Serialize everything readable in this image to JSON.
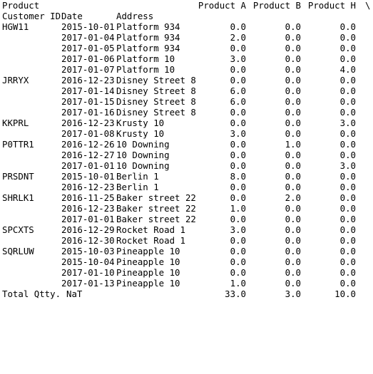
{
  "header": {
    "col0": "Product",
    "product_a": "Product A",
    "product_b": "Product B",
    "product_h": "Product H",
    "continuation": "\\",
    "customer_id": "Customer ID",
    "date": "Date",
    "address": "Address"
  },
  "rows": [
    {
      "id": "HGW11",
      "date": "2015-10-01",
      "address": "Platform 934",
      "a": "0.0",
      "b": "0.0",
      "h": "0.0"
    },
    {
      "id": "",
      "date": "2017-01-04",
      "address": "Platform 934",
      "a": "2.0",
      "b": "0.0",
      "h": "0.0"
    },
    {
      "id": "",
      "date": "2017-01-05",
      "address": "Platform 934",
      "a": "0.0",
      "b": "0.0",
      "h": "0.0"
    },
    {
      "id": "",
      "date": "2017-01-06",
      "address": "Platform 10",
      "a": "3.0",
      "b": "0.0",
      "h": "0.0"
    },
    {
      "id": "",
      "date": "2017-01-07",
      "address": "Platform 10",
      "a": "0.0",
      "b": "0.0",
      "h": "4.0"
    },
    {
      "id": "JRRYX",
      "date": "2016-12-23",
      "address": "Disney Street 8",
      "a": "0.0",
      "b": "0.0",
      "h": "0.0"
    },
    {
      "id": "",
      "date": "2017-01-14",
      "address": "Disney Street 8",
      "a": "6.0",
      "b": "0.0",
      "h": "0.0"
    },
    {
      "id": "",
      "date": "2017-01-15",
      "address": "Disney Street 8",
      "a": "6.0",
      "b": "0.0",
      "h": "0.0"
    },
    {
      "id": "",
      "date": "2017-01-16",
      "address": "Disney Street 8",
      "a": "0.0",
      "b": "0.0",
      "h": "0.0"
    },
    {
      "id": "KKPRL",
      "date": "2016-12-23",
      "address": "Krusty 10",
      "a": "0.0",
      "b": "0.0",
      "h": "3.0"
    },
    {
      "id": "",
      "date": "2017-01-08",
      "address": "Krusty 10",
      "a": "3.0",
      "b": "0.0",
      "h": "0.0"
    },
    {
      "id": "P0TTR1",
      "date": "2016-12-26",
      "address": "10 Downing",
      "a": "0.0",
      "b": "1.0",
      "h": "0.0"
    },
    {
      "id": "",
      "date": "2016-12-27",
      "address": "10 Downing",
      "a": "0.0",
      "b": "0.0",
      "h": "0.0"
    },
    {
      "id": "",
      "date": "2017-01-01",
      "address": "10 Downing",
      "a": "0.0",
      "b": "0.0",
      "h": "3.0"
    },
    {
      "id": "PRSDNT",
      "date": "2015-10-01",
      "address": "Berlin 1",
      "a": "8.0",
      "b": "0.0",
      "h": "0.0"
    },
    {
      "id": "",
      "date": "2016-12-23",
      "address": "Berlin 1",
      "a": "0.0",
      "b": "0.0",
      "h": "0.0"
    },
    {
      "id": "SHRLK1",
      "date": "2016-11-25",
      "address": "Baker street 22",
      "a": "0.0",
      "b": "2.0",
      "h": "0.0"
    },
    {
      "id": "",
      "date": "2016-12-23",
      "address": "Baker street 22",
      "a": "1.0",
      "b": "0.0",
      "h": "0.0"
    },
    {
      "id": "",
      "date": "2017-01-01",
      "address": "Baker street 22",
      "a": "0.0",
      "b": "0.0",
      "h": "0.0"
    },
    {
      "id": "SPCXTS",
      "date": "2016-12-29",
      "address": "Rocket Road 1",
      "a": "3.0",
      "b": "0.0",
      "h": "0.0"
    },
    {
      "id": "",
      "date": "2016-12-30",
      "address": "Rocket Road 1",
      "a": "0.0",
      "b": "0.0",
      "h": "0.0"
    },
    {
      "id": "SQRLUW",
      "date": "2015-10-03",
      "address": "Pineapple 10",
      "a": "0.0",
      "b": "0.0",
      "h": "0.0"
    },
    {
      "id": "",
      "date": "2015-10-04",
      "address": "Pineapple 10",
      "a": "0.0",
      "b": "0.0",
      "h": "0.0"
    },
    {
      "id": "",
      "date": "2017-01-10",
      "address": "Pineapple 10",
      "a": "0.0",
      "b": "0.0",
      "h": "0.0"
    },
    {
      "id": "",
      "date": "2017-01-13",
      "address": "Pineapple 10",
      "a": "1.0",
      "b": "0.0",
      "h": "0.0"
    }
  ],
  "total": {
    "label": "Total Qtty.",
    "date": "NaT",
    "address": "",
    "a": "33.0",
    "b": "3.0",
    "h": "10.0"
  }
}
